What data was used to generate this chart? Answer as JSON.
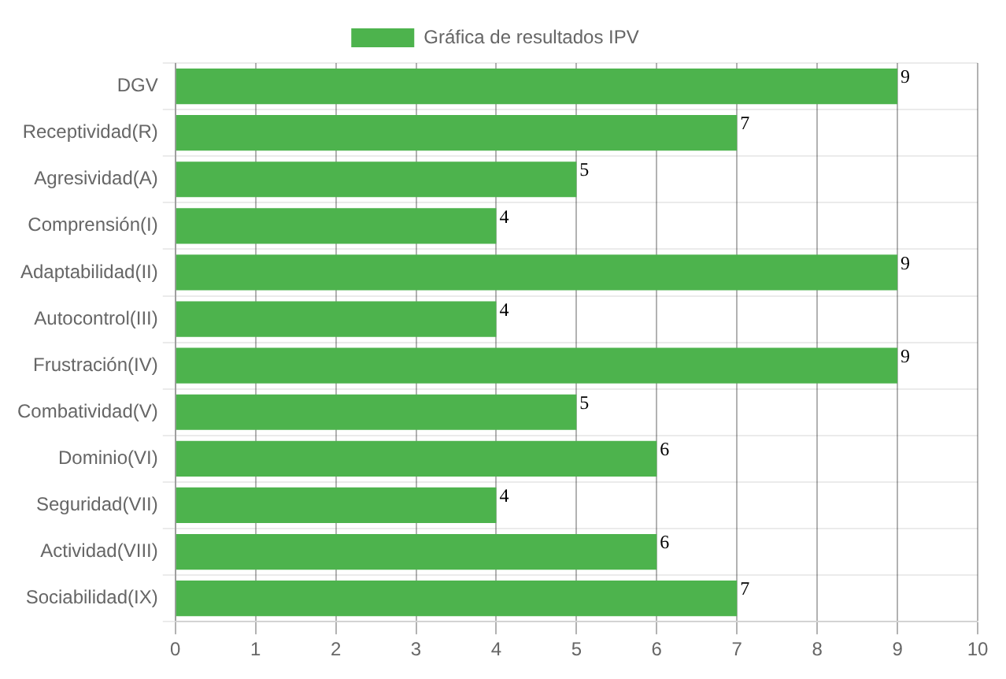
{
  "chart_data": {
    "type": "bar",
    "orientation": "horizontal",
    "categories": [
      "DGV",
      "Receptividad(R)",
      "Agresividad(A)",
      "Comprensión(I)",
      "Adaptabilidad(II)",
      "Autocontrol(III)",
      "Frustración(IV)",
      "Combatividad(V)",
      "Dominio(VI)",
      "Seguridad(VII)",
      "Actividad(VIII)",
      "Sociabilidad(IX)"
    ],
    "series": [
      {
        "name": "Gráfica de resultados IPV",
        "color": "#4db34d",
        "values": [
          9,
          7,
          5,
          4,
          9,
          4,
          9,
          5,
          6,
          4,
          6,
          7
        ]
      }
    ],
    "xlim": [
      0,
      10
    ],
    "xticks": [
      0,
      1,
      2,
      3,
      4,
      5,
      6,
      7,
      8,
      9,
      10
    ],
    "grid": true,
    "legend": "top",
    "data_labels": true
  }
}
